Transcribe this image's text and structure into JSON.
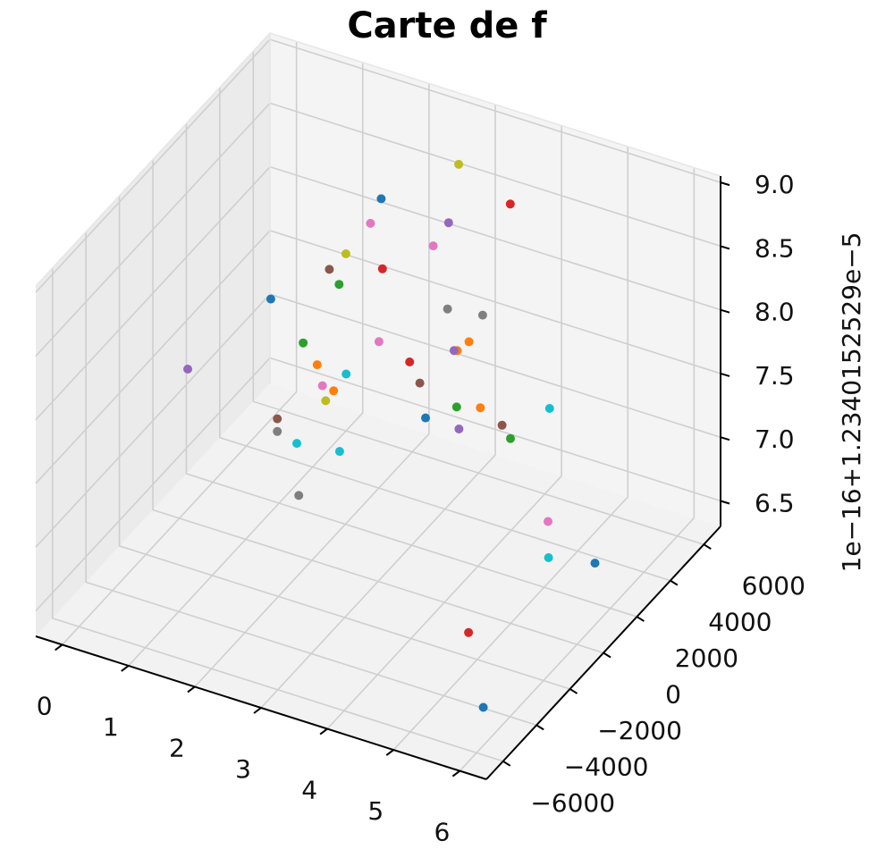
{
  "chart_data": {
    "type": "scatter",
    "projection": "3d",
    "title": "Carte de f",
    "xlabel": "",
    "ylabel": "",
    "zlabel": "",
    "z_offset_label": "1e−16+1.2340152529e−5",
    "x_ticks": [
      "0",
      "1",
      "2",
      "3",
      "4",
      "5",
      "6"
    ],
    "y_ticks": [
      "−6000",
      "−4000",
      "−2000",
      "0",
      "2000",
      "4000",
      "6000"
    ],
    "z_ticks": [
      "6.5",
      "7.0",
      "7.5",
      "8.0",
      "8.5",
      "9.0"
    ],
    "xlim": [
      -0.4,
      6.4
    ],
    "ylim": [
      -7000,
      7000
    ],
    "zlim": [
      6.3,
      9.05
    ],
    "grid": true,
    "legend": "none",
    "palette": [
      "#1f77b4",
      "#ff7f0e",
      "#2ca02c",
      "#d62728",
      "#9467bd",
      "#8c564b",
      "#e377c2",
      "#7f7f7f",
      "#bcbd22",
      "#17becf"
    ],
    "points": [
      {
        "x": 6.0,
        "y": -5600,
        "z": 6.6,
        "c": 0
      },
      {
        "x": 5.02,
        "y": -2600,
        "z": 6.6,
        "c": 3
      },
      {
        "x": 1.56,
        "y": 960,
        "z": 6.6,
        "c": 7
      },
      {
        "x": 1.56,
        "y": 3400,
        "z": 6.6,
        "c": 9
      },
      {
        "x": 2.2,
        "y": 6000,
        "z": 6.6,
        "c": 0
      },
      {
        "x": 1.4,
        "y": 3200,
        "z": 7.0,
        "c": 8
      },
      {
        "x": 3.82,
        "y": 7000,
        "z": 6.8,
        "c": 9
      },
      {
        "x": 0.56,
        "y": 4800,
        "z": 6.3,
        "c": 9
      },
      {
        "x": 0.0,
        "y": 500,
        "z": 7.4,
        "c": 4
      },
      {
        "x": 4.32,
        "y": -500,
        "z": 8.4,
        "c": 1
      },
      {
        "x": 2.72,
        "y": 5800,
        "z": 6.8,
        "c": 2
      },
      {
        "x": 1.1,
        "y": 1500,
        "z": 7.05,
        "c": 5
      },
      {
        "x": 1.1,
        "y": 1500,
        "z": 6.95,
        "c": 7
      },
      {
        "x": 0.56,
        "y": 7000,
        "z": 6.4,
        "c": 1
      },
      {
        "x": 0.9,
        "y": 1900,
        "z": 7.9,
        "c": 0
      },
      {
        "x": 0.1,
        "y": 7000,
        "z": 6.7,
        "c": 2
      },
      {
        "x": 1.6,
        "y": 1900,
        "z": 7.5,
        "c": 1
      },
      {
        "x": 1.4,
        "y": 4000,
        "z": 7.8,
        "c": 2
      },
      {
        "x": 1.2,
        "y": 3800,
        "z": 7.0,
        "c": 6
      },
      {
        "x": 0.85,
        "y": 5600,
        "z": 7.6,
        "c": 5
      },
      {
        "x": 0.8,
        "y": 6800,
        "z": 6.6,
        "c": 9
      },
      {
        "x": 1.96,
        "y": 6000,
        "z": 7.0,
        "c": 3
      },
      {
        "x": 1.6,
        "y": 5800,
        "z": 7.7,
        "c": 3
      },
      {
        "x": 1.15,
        "y": 5400,
        "z": 7.8,
        "c": 8
      },
      {
        "x": 1.52,
        "y": 5400,
        "z": 8.1,
        "c": 6
      },
      {
        "x": 1.38,
        "y": 6600,
        "z": 8.1,
        "c": 0
      },
      {
        "x": 3.28,
        "y": 5000,
        "z": 7.0,
        "c": 1
      },
      {
        "x": 2.63,
        "y": 6000,
        "z": 7.2,
        "c": 4
      },
      {
        "x": 2.38,
        "y": 6600,
        "z": 7.4,
        "c": 7
      },
      {
        "x": 2.72,
        "y": 3600,
        "z": 7.3,
        "c": 5
      },
      {
        "x": 3.26,
        "y": 3800,
        "z": 7.0,
        "c": 4
      },
      {
        "x": 3.26,
        "y": 4400,
        "z": 7.6,
        "c": 1
      },
      {
        "x": 4.24,
        "y": 3000,
        "z": 7.2,
        "c": 2
      },
      {
        "x": 3.86,
        "y": 4000,
        "z": 7.1,
        "c": 5
      },
      {
        "x": 2.76,
        "y": 1000,
        "z": 8.0,
        "c": 6
      },
      {
        "x": 2.6,
        "y": 6400,
        "z": 8.6,
        "c": 8
      },
      {
        "x": 3.63,
        "y": 5400,
        "z": 8.6,
        "c": 3
      },
      {
        "x": 2.77,
        "y": 4200,
        "z": 8.3,
        "c": 6
      },
      {
        "x": 2.7,
        "y": 5400,
        "z": 8.3,
        "c": 4
      },
      {
        "x": 3.82,
        "y": 3000,
        "z": 8.1,
        "c": 7
      },
      {
        "x": 5.16,
        "y": 1600,
        "z": 6.9,
        "c": 6
      },
      {
        "x": 5.42,
        "y": 600,
        "z": 6.8,
        "c": 9
      },
      {
        "x": 6.02,
        "y": 1000,
        "z": 6.8,
        "c": 0
      }
    ]
  }
}
